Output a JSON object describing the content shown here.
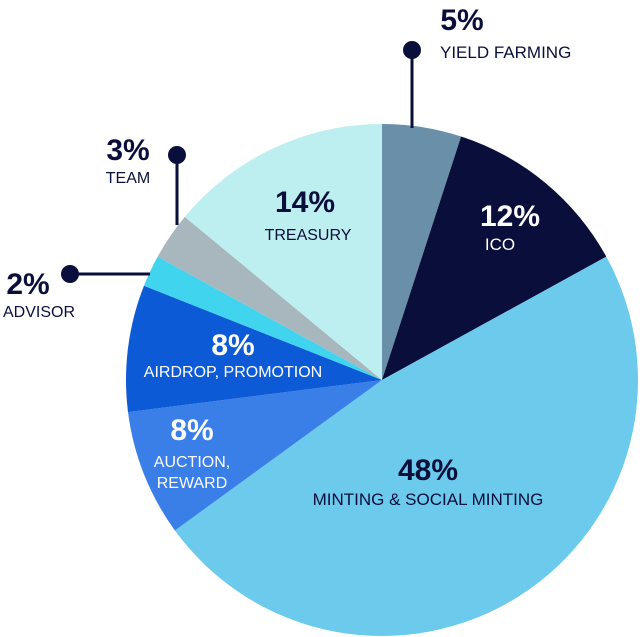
{
  "chart_data": {
    "type": "pie",
    "slices": [
      {
        "label": "YIELD FARMING",
        "value": 5,
        "display": "5%",
        "color": "#6a8fa8"
      },
      {
        "label": "ICO",
        "value": 12,
        "display": "12%",
        "color": "#0a0e3a"
      },
      {
        "label": "MINTING & SOCIAL MINTING",
        "value": 48,
        "display": "48%",
        "color": "#6ccaec"
      },
      {
        "label": "AUCTION, REWARD",
        "value": 8,
        "display": "8%",
        "color": "#3a7ee8"
      },
      {
        "label": "AIRDROP, PROMOTION",
        "value": 8,
        "display": "8%",
        "color": "#0d5ad6"
      },
      {
        "label": "ADVISOR",
        "value": 2,
        "display": "2%",
        "color": "#40d4ef"
      },
      {
        "label": "TEAM",
        "value": 3,
        "display": "3%",
        "color": "#a8b6bd"
      },
      {
        "label": "TREASURY",
        "value": 14,
        "display": "14%",
        "color": "#bdeff0"
      }
    ],
    "callout_color": "#0a0e3a"
  }
}
